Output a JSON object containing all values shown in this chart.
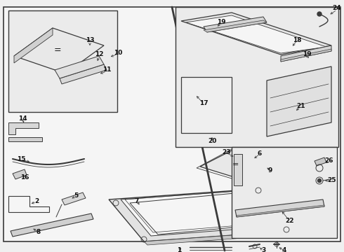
{
  "bg_color": "#f0f0f0",
  "inner_bg": "#f5f5f5",
  "line_color": "#3a3a3a",
  "text_color": "#111111",
  "box_bg": "#ebebeb",
  "figsize": [
    4.9,
    3.6
  ],
  "dpi": 100
}
